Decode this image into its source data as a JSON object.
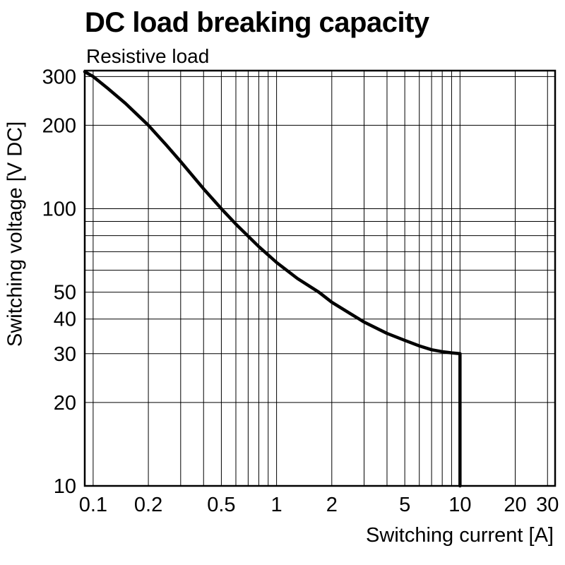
{
  "title": "DC load breaking capacity",
  "subtitle": "Resistive load",
  "chart_data": {
    "type": "line",
    "title": "DC load breaking capacity",
    "subtitle": "Resistive load",
    "xlabel": "Switching current [A]",
    "ylabel": "Switching voltage [V DC]",
    "x_scale": "log",
    "y_scale": "log",
    "xlim": [
      0.09,
      33
    ],
    "ylim": [
      10,
      315
    ],
    "x_ticks": [
      0.1,
      0.2,
      0.5,
      1,
      2,
      5,
      10,
      20,
      30
    ],
    "y_ticks": [
      10,
      20,
      30,
      40,
      50,
      100,
      200,
      300
    ],
    "x_gridlines": [
      0.1,
      0.2,
      0.3,
      0.4,
      0.5,
      0.6,
      0.7,
      0.8,
      0.9,
      1,
      2,
      3,
      4,
      5,
      6,
      7,
      8,
      9,
      10,
      20,
      30
    ],
    "y_gridlines": [
      10,
      20,
      30,
      40,
      50,
      60,
      70,
      80,
      90,
      100,
      200,
      300
    ],
    "grid": true,
    "legend": "none",
    "line_color": "#000000",
    "series": [
      {
        "name": "Resistive load",
        "points": [
          [
            0.09,
            312
          ],
          [
            0.1,
            300
          ],
          [
            0.12,
            272
          ],
          [
            0.15,
            240
          ],
          [
            0.2,
            200
          ],
          [
            0.25,
            170
          ],
          [
            0.3,
            148
          ],
          [
            0.4,
            118
          ],
          [
            0.5,
            100
          ],
          [
            0.6,
            88
          ],
          [
            0.8,
            73
          ],
          [
            1.0,
            64
          ],
          [
            1.3,
            56
          ],
          [
            1.7,
            50
          ],
          [
            2.0,
            46
          ],
          [
            2.5,
            42
          ],
          [
            3.0,
            39
          ],
          [
            4.0,
            35.5
          ],
          [
            5.0,
            33.5
          ],
          [
            6.0,
            32
          ],
          [
            7.0,
            31
          ],
          [
            8.0,
            30.5
          ],
          [
            9.0,
            30.2
          ],
          [
            10.0,
            30
          ],
          [
            10.0,
            10
          ]
        ]
      }
    ]
  }
}
